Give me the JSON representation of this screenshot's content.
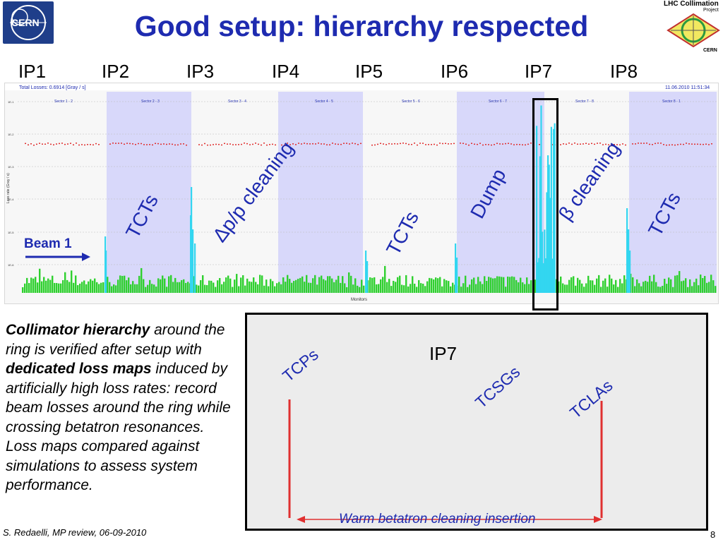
{
  "title": "Good setup: hierarchy respected",
  "ip_labels": [
    "IP1",
    "IP2",
    "IP3",
    "IP4",
    "IP5",
    "IP6",
    "IP7",
    "IP8"
  ],
  "logos": {
    "cern": "CERN",
    "lhc_collimation": "LHC Collimation",
    "project": "Project",
    "lhc_cern": "CERN"
  },
  "plot": {
    "header_left": "Total Losses: 0.6914 [Gray / s]",
    "header_right": "11.06.2010 11:51:34",
    "sectors": [
      "Sector 1 - 2",
      "Sector 2 - 3",
      "Sector 3 - 4",
      "Sector 4 - 5",
      "Sector 5 - 6",
      "Sector 6 - 7",
      "Sector 7 - 8",
      "Sector 8 - 1"
    ],
    "xlabel": "Monitors",
    "ylabel": "Loss rate (Gray / s)",
    "ytick_labels": [
      "1E-1",
      "1E-2",
      "1E-3",
      "1E-4",
      "1E-5",
      "1E-6"
    ],
    "beam_label": "Beam 1"
  },
  "annotations": {
    "tcts_ip2": "TCTs",
    "momentum_cleaning": "Δp/p cleaning",
    "tcts_ip5": "TCTs",
    "dump": "Dump",
    "betatron_cleaning": "β cleaning",
    "tcts_ip8": "TCTs"
  },
  "inset": {
    "tcps": "TCPs",
    "ip7": "IP7",
    "tcsgs": "TCSGs",
    "tclas": "TCLAs",
    "caption": "Warm betatron cleaning insertion"
  },
  "description": {
    "p1": "Collimator hierarchy",
    "p2": " around the ring is verified after setup with ",
    "p3": "dedicated loss maps",
    "p4": " induced by artificially high loss rates: record beam losses around the ring while crossing betatron resonances.",
    "p5": "Loss maps compared against simulations to assess system performance."
  },
  "footer": "S. Redaelli, MP review, 06-09-2010",
  "page_number": "8",
  "colors": {
    "title": "#1e2bb0",
    "annotation": "#1e2bb0",
    "green": "#2fd02f",
    "cyan": "#33d6f0",
    "red": "#e03030",
    "shade": "#d8d8fa"
  }
}
